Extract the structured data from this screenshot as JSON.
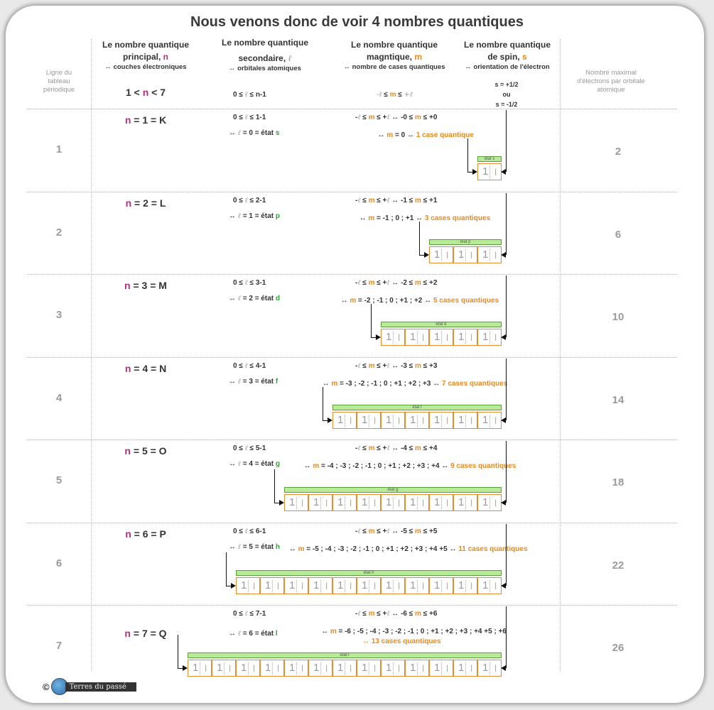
{
  "title": "Nous venons donc de voir 4 nombres quantiques",
  "left_header": "Ligne du tableau périodique",
  "right_header": "Nombre maximal d'électrons par orbitale atomique",
  "headers": {
    "n": {
      "line1": "Le nombre quantique",
      "line2": "principal, ",
      "sym": "n",
      "sub": "↔ couches électroniques"
    },
    "l": {
      "line1": "Le nombre quantique",
      "line2": "secondaire, ",
      "sym": "ℓ",
      "sub": "↔ orbitales atomiques"
    },
    "m": {
      "line1": "Le nombre quantique",
      "line2": "magntique, ",
      "sym": "m",
      "sub": "↔ nombre de cases quantiques"
    },
    "s": {
      "line1": "Le nombre quantique",
      "line2": "de spin, ",
      "sym": "s",
      "sub": "↔ orientation de l'électron"
    }
  },
  "general": {
    "n_range": "1 < n < 7",
    "l_range": "0 ≤ ℓ ≤ n-1",
    "m_range": "-ℓ ≤ m ≤ +ℓ",
    "s_plus": "s = +1/2",
    "s_or": "ou",
    "s_minus": "s = -1/2"
  },
  "rows": [
    {
      "row": "1",
      "n": "n = 1 = K",
      "l_range": "0 ≤ ℓ ≤ 1-1",
      "l_state": "↔ ℓ = 0 = état s",
      "m_range": "-ℓ ≤ m ≤ +ℓ ↔ -0 ≤ m ≤ +0",
      "m_values": "↔ m = 0 ↔",
      "cases": "1 case quantique",
      "state_label": "état s",
      "boxes": 1,
      "max": "2"
    },
    {
      "row": "2",
      "n": "n = 2 = L",
      "l_range": "0 ≤ ℓ ≤ 2-1",
      "l_state": "↔ ℓ = 1 = état p",
      "m_range": "-ℓ ≤ m ≤ +ℓ ↔ -1 ≤ m ≤ +1",
      "m_values": "↔ m = -1 ; 0 ; +1 ↔",
      "cases": "3 cases quantiques",
      "state_label": "état p",
      "boxes": 3,
      "max": "6"
    },
    {
      "row": "3",
      "n": "n = 3 = M",
      "l_range": "0 ≤ ℓ ≤ 3-1",
      "l_state": "↔ ℓ = 2 = état d",
      "m_range": "-ℓ ≤ m ≤ +ℓ ↔ -2 ≤ m ≤ +2",
      "m_values": "↔ m = -2 ; -1 ; 0 ; +1 ; +2 ↔",
      "cases": "5 cases quantiques",
      "state_label": "état d",
      "boxes": 5,
      "max": "10"
    },
    {
      "row": "4",
      "n": "n = 4 = N",
      "l_range": "0 ≤ ℓ ≤ 4-1",
      "l_state": "↔ ℓ = 3 = état f",
      "m_range": "-ℓ ≤ m ≤ +ℓ ↔ -3 ≤ m ≤ +3",
      "m_values": "↔ m = -3 ; -2 ; -1 ; 0 ; +1 ; +2 ; +3 ↔",
      "cases": "7 cases quantiques",
      "state_label": "état f",
      "boxes": 7,
      "max": "14"
    },
    {
      "row": "5",
      "n": "n = 5 = O",
      "l_range": "0 ≤ ℓ ≤ 5-1",
      "l_state": "↔ ℓ = 4 = état g",
      "m_range": "-ℓ ≤ m ≤ +ℓ ↔ -4 ≤ m ≤ +4",
      "m_values": "↔ m = -4 ; -3 ; -2 ; -1 ; 0 ; +1 ; +2 ; +3 ; +4 ↔",
      "cases": "9 cases quantiques",
      "state_label": "état g",
      "boxes": 9,
      "max": "18"
    },
    {
      "row": "6",
      "n": "n = 6 = P",
      "l_range": "0 ≤ ℓ ≤ 6-1",
      "l_state": "↔ ℓ = 5 = état h",
      "m_range": "-ℓ ≤ m ≤ +ℓ ↔ -5 ≤ m ≤ +5",
      "m_values": "↔ m = -5 ; -4 ; -3 ; -2 ; -1 ; 0 ; +1 ; +2 ; +3 ; +4 +5 ↔",
      "cases": "11 cases quantiques",
      "state_label": "état h",
      "boxes": 11,
      "max": "22"
    },
    {
      "row": "7",
      "n": "n = 7 = Q",
      "l_range": "0 ≤ ℓ ≤ 7-1",
      "l_state": "↔ ℓ = 6 = état l",
      "m_range": "-ℓ ≤ m ≤ +ℓ ↔ -6 ≤ m ≤ +6",
      "m_values": "↔ m = -6 ; -5 ; -4 ; -3 ; -2 ; -1 ; 0 ; +1 ; +2 ; +3 ; +4 +5 ; +6",
      "cases": "↔ 13 cases quantiques",
      "state_label": "état l",
      "boxes": 13,
      "max": "26"
    }
  ],
  "box_glyphs": {
    "up": "1",
    "down": "l"
  },
  "footer": {
    "copyright": "©",
    "brand": "Terres du passé"
  }
}
